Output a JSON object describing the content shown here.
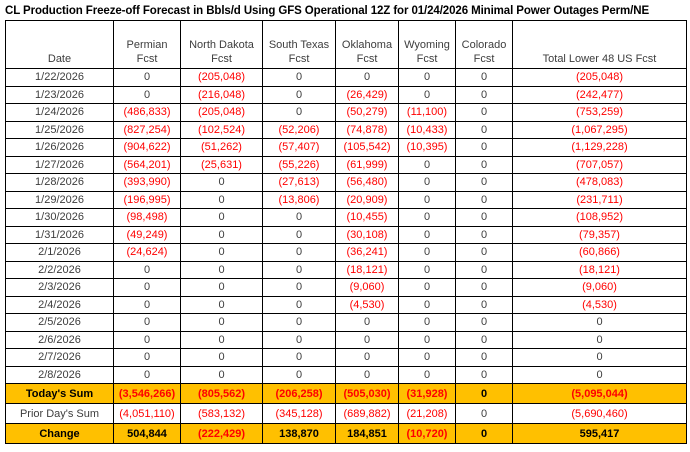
{
  "title": "CL Production Freeze-off Forecast in Bbls/d Using GFS Operational 12Z for 01/24/2026 Minimal Power Outages Perm/NE",
  "colors": {
    "negative_text": "#ff0000",
    "highlight_row_bg": "#ffc000",
    "border": "#000000",
    "regular_text": "#3d3d3d"
  },
  "chart_data": {
    "type": "table",
    "title": "CL Production Freeze-off Forecast in Bbls/d Using GFS Operational 12Z for 01/24/2026 Minimal Power Outages Perm/NE",
    "columns": [
      {
        "label": "Date",
        "sublabel": ""
      },
      {
        "label": "Permian",
        "sublabel": "Fcst"
      },
      {
        "label": "North Dakota",
        "sublabel": "Fcst"
      },
      {
        "label": "South Texas",
        "sublabel": "Fcst"
      },
      {
        "label": "Oklahoma",
        "sublabel": "Fcst"
      },
      {
        "label": "Wyoming",
        "sublabel": "Fcst"
      },
      {
        "label": "Colorado",
        "sublabel": "Fcst"
      },
      {
        "label": "Total Lower 48 US Fcst",
        "sublabel": ""
      }
    ],
    "rows": [
      {
        "date": "1/22/2026",
        "values": [
          "0",
          "(205,048)",
          "0",
          "0",
          "0",
          "0",
          "(205,048)"
        ]
      },
      {
        "date": "1/23/2026",
        "values": [
          "0",
          "(216,048)",
          "0",
          "(26,429)",
          "0",
          "0",
          "(242,477)"
        ]
      },
      {
        "date": "1/24/2026",
        "values": [
          "(486,833)",
          "(205,048)",
          "0",
          "(50,279)",
          "(11,100)",
          "0",
          "(753,259)"
        ]
      },
      {
        "date": "1/25/2026",
        "values": [
          "(827,254)",
          "(102,524)",
          "(52,206)",
          "(74,878)",
          "(10,433)",
          "0",
          "(1,067,295)"
        ]
      },
      {
        "date": "1/26/2026",
        "values": [
          "(904,622)",
          "(51,262)",
          "(57,407)",
          "(105,542)",
          "(10,395)",
          "0",
          "(1,129,228)"
        ]
      },
      {
        "date": "1/27/2026",
        "values": [
          "(564,201)",
          "(25,631)",
          "(55,226)",
          "(61,999)",
          "0",
          "0",
          "(707,057)"
        ]
      },
      {
        "date": "1/28/2026",
        "values": [
          "(393,990)",
          "0",
          "(27,613)",
          "(56,480)",
          "0",
          "0",
          "(478,083)"
        ]
      },
      {
        "date": "1/29/2026",
        "values": [
          "(196,995)",
          "0",
          "(13,806)",
          "(20,909)",
          "0",
          "0",
          "(231,711)"
        ]
      },
      {
        "date": "1/30/2026",
        "values": [
          "(98,498)",
          "0",
          "0",
          "(10,455)",
          "0",
          "0",
          "(108,952)"
        ]
      },
      {
        "date": "1/31/2026",
        "values": [
          "(49,249)",
          "0",
          "0",
          "(30,108)",
          "0",
          "0",
          "(79,357)"
        ]
      },
      {
        "date": "2/1/2026",
        "values": [
          "(24,624)",
          "0",
          "0",
          "(36,241)",
          "0",
          "0",
          "(60,866)"
        ]
      },
      {
        "date": "2/2/2026",
        "values": [
          "0",
          "0",
          "0",
          "(18,121)",
          "0",
          "0",
          "(18,121)"
        ]
      },
      {
        "date": "2/3/2026",
        "values": [
          "0",
          "0",
          "0",
          "(9,060)",
          "0",
          "0",
          "(9,060)"
        ]
      },
      {
        "date": "2/4/2026",
        "values": [
          "0",
          "0",
          "0",
          "(4,530)",
          "0",
          "0",
          "(4,530)"
        ]
      },
      {
        "date": "2/5/2026",
        "values": [
          "0",
          "0",
          "0",
          "0",
          "0",
          "0",
          "0"
        ]
      },
      {
        "date": "2/6/2026",
        "values": [
          "0",
          "0",
          "0",
          "0",
          "0",
          "0",
          "0"
        ]
      },
      {
        "date": "2/7/2026",
        "values": [
          "0",
          "0",
          "0",
          "0",
          "0",
          "0",
          "0"
        ]
      },
      {
        "date": "2/8/2026",
        "values": [
          "0",
          "0",
          "0",
          "0",
          "0",
          "0",
          "0"
        ]
      }
    ],
    "summary_rows": [
      {
        "label": "Today's Sum",
        "style": "highlight",
        "values": [
          "(3,546,266)",
          "(805,562)",
          "(206,258)",
          "(505,030)",
          "(31,928)",
          "0",
          "(5,095,044)"
        ]
      },
      {
        "label": "Prior Day's Sum",
        "style": "plain",
        "values": [
          "(4,051,110)",
          "(583,132)",
          "(345,128)",
          "(689,882)",
          "(21,208)",
          "0",
          "(5,690,460)"
        ]
      },
      {
        "label": "Change",
        "style": "highlight",
        "values": [
          "504,844",
          "(222,429)",
          "138,870",
          "184,851",
          "(10,720)",
          "0",
          "595,417"
        ]
      }
    ]
  }
}
